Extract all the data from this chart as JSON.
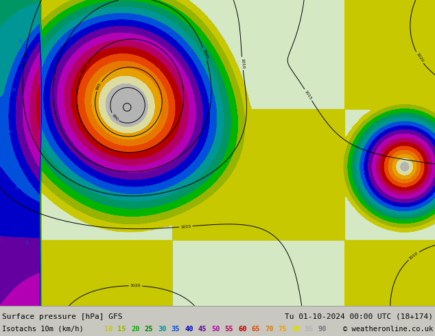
{
  "title_left": "Surface pressure [hPa] GFS",
  "title_right": "Tu 01-10-2024 00:00 UTC (18+174)",
  "legend_label": "Isotachs 10m (km/h)",
  "copyright": "© weatheronline.co.uk",
  "isotach_values": [
    "10",
    "15",
    "20",
    "25",
    "30",
    "35",
    "40",
    "45",
    "50",
    "55",
    "60",
    "65",
    "70",
    "75",
    "80",
    "85",
    "90"
  ],
  "isotach_colors": [
    "#c8c800",
    "#96b400",
    "#00b400",
    "#008200",
    "#009696",
    "#0050dc",
    "#0000c8",
    "#6400a0",
    "#b400b4",
    "#b40064",
    "#b40000",
    "#e64600",
    "#e67800",
    "#e6a000",
    "#dcdc00",
    "#b4b4b4",
    "#787878"
  ],
  "fig_width": 6.34,
  "fig_height": 4.9,
  "dpi": 100,
  "map_left_bg": "#dcdcd0",
  "map_right_bg": "#d2e8c0",
  "bottom_bg": "#ffffff",
  "font_size_title": 8.0,
  "font_size_legend": 7.5,
  "font_size_isotach": 7.5
}
